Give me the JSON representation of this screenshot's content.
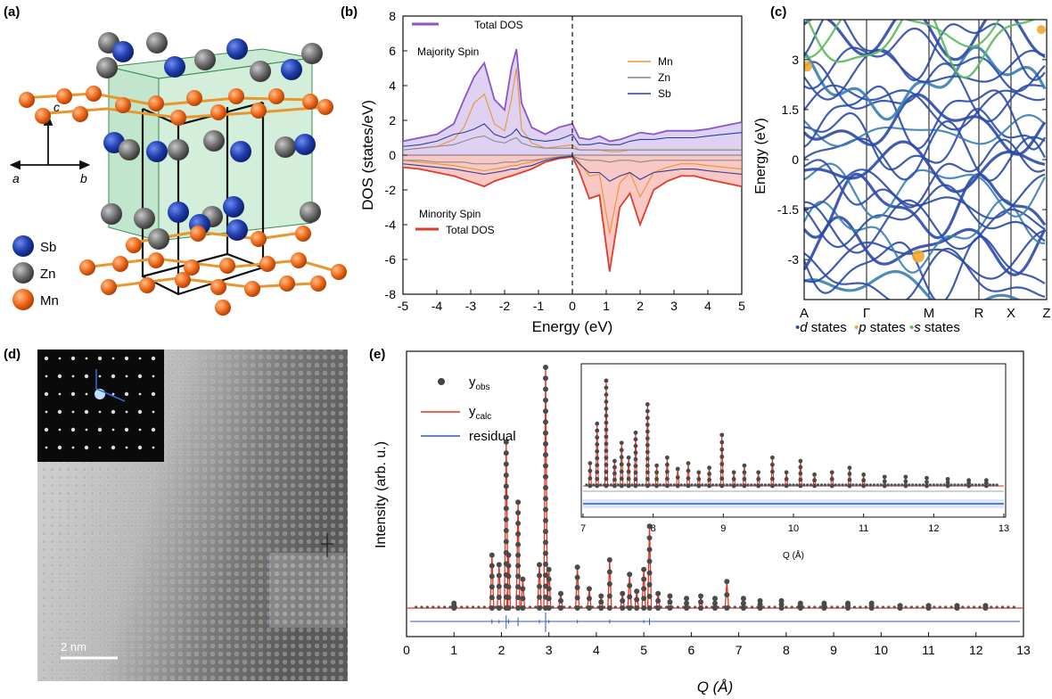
{
  "panels": {
    "a": {
      "label": "(a)",
      "axes": {
        "c": "c",
        "a": "a",
        "b": "b"
      },
      "legend": [
        {
          "name": "Sb",
          "color": "#1f3fae"
        },
        {
          "name": "Zn",
          "color": "#6e6e6e"
        },
        {
          "name": "Mn",
          "color": "#f06a1c"
        }
      ]
    },
    "b": {
      "label": "(b)",
      "annotations": {
        "total_dos_top": "Total DOS",
        "majority": "Majority Spin",
        "minority": "Minority Spin",
        "total_dos_bottom": "Total DOS"
      },
      "legend": [
        {
          "name": "Mn",
          "color": "#e8962e"
        },
        {
          "name": "Zn",
          "color": "#8a8a8a"
        },
        {
          "name": "Sb",
          "color": "#2b3f9a"
        }
      ]
    },
    "c": {
      "label": "(c)",
      "legend": [
        {
          "prefix": "•",
          "italic": "d",
          "suffix": " states",
          "color": "#2b4aa8"
        },
        {
          "prefix": "•",
          "italic": "p",
          "suffix": " states",
          "color": "#f0a830"
        },
        {
          "prefix": "•",
          "italic": "s",
          "suffix": " states",
          "color": "#5cb85c"
        }
      ]
    },
    "d": {
      "label": "(d)",
      "scalebar": "2 nm"
    },
    "e": {
      "label": "(e)",
      "legend": [
        {
          "name": "y",
          "sub": "obs",
          "color": "#444444"
        },
        {
          "name": "y",
          "sub": "calc",
          "color": "#e8321e"
        },
        {
          "name": "residual",
          "sub": "",
          "color": "#2b5bb5"
        }
      ],
      "inset_xlabel": "Q (Å)"
    }
  },
  "chart_data": [
    {
      "id": "dos",
      "type": "area",
      "xlabel": "Energy (eV)",
      "ylabel": "DOS (states/eV)",
      "xlim": [
        -5,
        5
      ],
      "ylim": [
        -8,
        8
      ],
      "xticks": [
        "-5",
        "-4",
        "-3",
        "-2",
        "-1",
        "0",
        "1",
        "2",
        "3",
        "4",
        "5"
      ],
      "yticks": [
        "-8",
        "-6",
        "-4",
        "-2",
        "0",
        "2",
        "4",
        "6",
        "8"
      ],
      "x": [
        -5,
        -4.5,
        -4,
        -3.5,
        -3.2,
        -2.9,
        -2.6,
        -2.3,
        -2.0,
        -1.8,
        -1.65,
        -1.5,
        -1.2,
        -0.8,
        -0.4,
        0,
        0.2,
        0.5,
        0.8,
        1.1,
        1.4,
        1.7,
        2.0,
        2.4,
        2.8,
        3.2,
        3.6,
        4.0,
        4.5,
        5
      ],
      "series": [
        {
          "name": "Total DOS",
          "color": "#8a55c8",
          "values": [
            0.8,
            1.0,
            1.2,
            1.8,
            3.2,
            4.5,
            5.3,
            3.2,
            2.6,
            5.0,
            6.1,
            3.0,
            1.6,
            1.2,
            1.6,
            1.8,
            1.0,
            0.9,
            1.1,
            0.8,
            0.9,
            1.1,
            1.3,
            1.2,
            1.4,
            1.4,
            1.4,
            1.5,
            1.7,
            1.9
          ]
        },
        {
          "name": "Mn",
          "color": "#e8962e",
          "values": [
            0.3,
            0.4,
            0.5,
            0.9,
            1.6,
            3.0,
            3.5,
            1.8,
            1.4,
            3.2,
            5.0,
            1.5,
            0.7,
            0.4,
            0.5,
            0.6,
            0.3,
            0.3,
            0.3,
            0.2,
            0.2,
            0.3,
            0.3,
            0.3,
            0.3,
            0.3,
            0.3,
            0.3,
            0.3,
            0.3
          ]
        },
        {
          "name": "Zn",
          "color": "#8a8a8a",
          "values": [
            0.3,
            0.4,
            0.5,
            0.6,
            0.8,
            1.0,
            1.1,
            0.8,
            0.7,
            0.9,
            1.0,
            0.7,
            0.5,
            0.4,
            0.4,
            0.4,
            0.3,
            0.3,
            0.3,
            0.3,
            0.3,
            0.3,
            0.3,
            0.3,
            0.3,
            0.3,
            0.3,
            0.3,
            0.3,
            0.3
          ]
        },
        {
          "name": "Sb",
          "color": "#2b3f9a",
          "values": [
            0.5,
            0.6,
            0.8,
            1.2,
            1.3,
            1.5,
            1.8,
            1.2,
            1.0,
            1.2,
            1.5,
            1.1,
            0.9,
            0.8,
            0.9,
            1.2,
            0.6,
            0.6,
            0.7,
            0.6,
            0.6,
            0.8,
            0.9,
            0.9,
            1.0,
            1.0,
            1.0,
            1.1,
            1.2,
            1.3
          ]
        },
        {
          "name": "Total DOS",
          "color": "#e03c2c",
          "values": [
            -0.7,
            -0.8,
            -1.0,
            -1.2,
            -1.4,
            -1.6,
            -1.8,
            -1.5,
            -1.3,
            -1.2,
            -1.1,
            -1.0,
            -0.8,
            -0.4,
            -0.2,
            -0.1,
            -0.9,
            -2.5,
            -2.3,
            -6.7,
            -3.0,
            -2.2,
            -4.0,
            -2.0,
            -1.5,
            -1.2,
            -1.2,
            -1.4,
            -1.6,
            -1.8
          ]
        },
        {
          "name": "Mn",
          "color": "#e8962e",
          "values": [
            -0.3,
            -0.4,
            -0.5,
            -0.6,
            -0.7,
            -0.8,
            -0.9,
            -0.8,
            -0.7,
            -0.6,
            -0.6,
            -0.5,
            -0.4,
            -0.2,
            -0.1,
            -0.05,
            -0.4,
            -1.2,
            -1.1,
            -4.5,
            -1.6,
            -1.0,
            -2.4,
            -1.0,
            -0.7,
            -0.5,
            -0.5,
            -0.6,
            -0.7,
            -0.8
          ]
        },
        {
          "name": "Zn",
          "color": "#8a8a8a",
          "values": [
            -0.3,
            -0.3,
            -0.4,
            -0.4,
            -0.4,
            -0.5,
            -0.5,
            -0.5,
            -0.4,
            -0.4,
            -0.4,
            -0.3,
            -0.3,
            -0.2,
            -0.1,
            -0.05,
            -0.2,
            -0.3,
            -0.3,
            -0.4,
            -0.3,
            -0.3,
            -0.4,
            -0.3,
            -0.3,
            -0.3,
            -0.3,
            -0.3,
            -0.3,
            -0.3
          ]
        },
        {
          "name": "Sb",
          "color": "#2b3f9a",
          "values": [
            -0.5,
            -0.6,
            -0.7,
            -0.8,
            -0.9,
            -1.0,
            -1.1,
            -1.0,
            -0.9,
            -0.8,
            -0.8,
            -0.7,
            -0.6,
            -0.3,
            -0.15,
            -0.05,
            -0.5,
            -1.0,
            -1.0,
            -1.5,
            -1.2,
            -1.0,
            -1.4,
            -1.0,
            -0.9,
            -0.8,
            -0.8,
            -0.9,
            -1.0,
            -1.1
          ]
        }
      ]
    },
    {
      "id": "bands",
      "type": "line",
      "ylabel": "Energy (eV)",
      "ylim": [
        -4.2,
        4.2
      ],
      "yticks": [
        "3",
        "1.5",
        "0",
        "-1.5",
        "-3"
      ],
      "kpoints": [
        "A",
        "Γ",
        "M",
        "R",
        "X",
        "Z"
      ]
    },
    {
      "id": "xrd",
      "type": "scatter",
      "xlabel": "Q (Å)",
      "ylabel": "Intensity (arb. u.)",
      "xlim": [
        0,
        13
      ],
      "xticks": [
        "0",
        "1",
        "2",
        "3",
        "4",
        "5",
        "6",
        "7",
        "8",
        "9",
        "10",
        "11",
        "12",
        "13"
      ],
      "peaks": [
        {
          "q": 1.0,
          "i": 0.02
        },
        {
          "q": 1.8,
          "i": 0.22
        },
        {
          "q": 1.95,
          "i": 0.18
        },
        {
          "q": 2.1,
          "i": 0.69
        },
        {
          "q": 2.15,
          "i": 0.22
        },
        {
          "q": 2.35,
          "i": 0.44
        },
        {
          "q": 2.45,
          "i": 0.12
        },
        {
          "q": 2.8,
          "i": 0.18
        },
        {
          "q": 2.93,
          "i": 1.0
        },
        {
          "q": 3.0,
          "i": 0.16
        },
        {
          "q": 3.25,
          "i": 0.06
        },
        {
          "q": 3.6,
          "i": 0.17
        },
        {
          "q": 3.85,
          "i": 0.08
        },
        {
          "q": 4.1,
          "i": 0.05
        },
        {
          "q": 4.28,
          "i": 0.2
        },
        {
          "q": 4.55,
          "i": 0.06
        },
        {
          "q": 4.7,
          "i": 0.14
        },
        {
          "q": 4.85,
          "i": 0.07
        },
        {
          "q": 5.0,
          "i": 0.16
        },
        {
          "q": 5.12,
          "i": 0.34
        },
        {
          "q": 5.3,
          "i": 0.06
        },
        {
          "q": 5.55,
          "i": 0.05
        },
        {
          "q": 5.9,
          "i": 0.04
        },
        {
          "q": 6.2,
          "i": 0.05
        },
        {
          "q": 6.5,
          "i": 0.04
        },
        {
          "q": 6.75,
          "i": 0.11
        },
        {
          "q": 7.1,
          "i": 0.04
        },
        {
          "q": 7.45,
          "i": 0.03
        },
        {
          "q": 7.9,
          "i": 0.03
        },
        {
          "q": 8.3,
          "i": 0.02
        },
        {
          "q": 8.8,
          "i": 0.02
        },
        {
          "q": 9.3,
          "i": 0.02
        },
        {
          "q": 9.8,
          "i": 0.02
        },
        {
          "q": 10.4,
          "i": 0.01
        },
        {
          "q": 11.0,
          "i": 0.01
        },
        {
          "q": 11.6,
          "i": 0.01
        },
        {
          "q": 12.2,
          "i": 0.01
        }
      ],
      "inset": {
        "xlim": [
          7,
          13
        ],
        "xticks": [
          "7",
          "8",
          "9",
          "10",
          "11",
          "12",
          "13"
        ],
        "peaks": [
          {
            "q": 7.1,
            "i": 0.2
          },
          {
            "q": 7.2,
            "i": 0.55
          },
          {
            "q": 7.33,
            "i": 0.93
          },
          {
            "q": 7.45,
            "i": 0.22
          },
          {
            "q": 7.55,
            "i": 0.38
          },
          {
            "q": 7.65,
            "i": 0.25
          },
          {
            "q": 7.75,
            "i": 0.47
          },
          {
            "q": 7.92,
            "i": 0.72
          },
          {
            "q": 8.05,
            "i": 0.18
          },
          {
            "q": 8.2,
            "i": 0.25
          },
          {
            "q": 8.35,
            "i": 0.15
          },
          {
            "q": 8.5,
            "i": 0.2
          },
          {
            "q": 8.65,
            "i": 0.12
          },
          {
            "q": 8.8,
            "i": 0.16
          },
          {
            "q": 8.98,
            "i": 0.45
          },
          {
            "q": 9.15,
            "i": 0.12
          },
          {
            "q": 9.3,
            "i": 0.18
          },
          {
            "q": 9.5,
            "i": 0.12
          },
          {
            "q": 9.7,
            "i": 0.25
          },
          {
            "q": 9.9,
            "i": 0.12
          },
          {
            "q": 10.1,
            "i": 0.22
          },
          {
            "q": 10.3,
            "i": 0.1
          },
          {
            "q": 10.55,
            "i": 0.12
          },
          {
            "q": 10.8,
            "i": 0.16
          },
          {
            "q": 11.0,
            "i": 0.1
          },
          {
            "q": 11.3,
            "i": 0.08
          },
          {
            "q": 11.6,
            "i": 0.08
          },
          {
            "q": 11.9,
            "i": 0.07
          },
          {
            "q": 12.2,
            "i": 0.06
          },
          {
            "q": 12.5,
            "i": 0.05
          },
          {
            "q": 12.75,
            "i": 0.05
          }
        ]
      }
    }
  ]
}
